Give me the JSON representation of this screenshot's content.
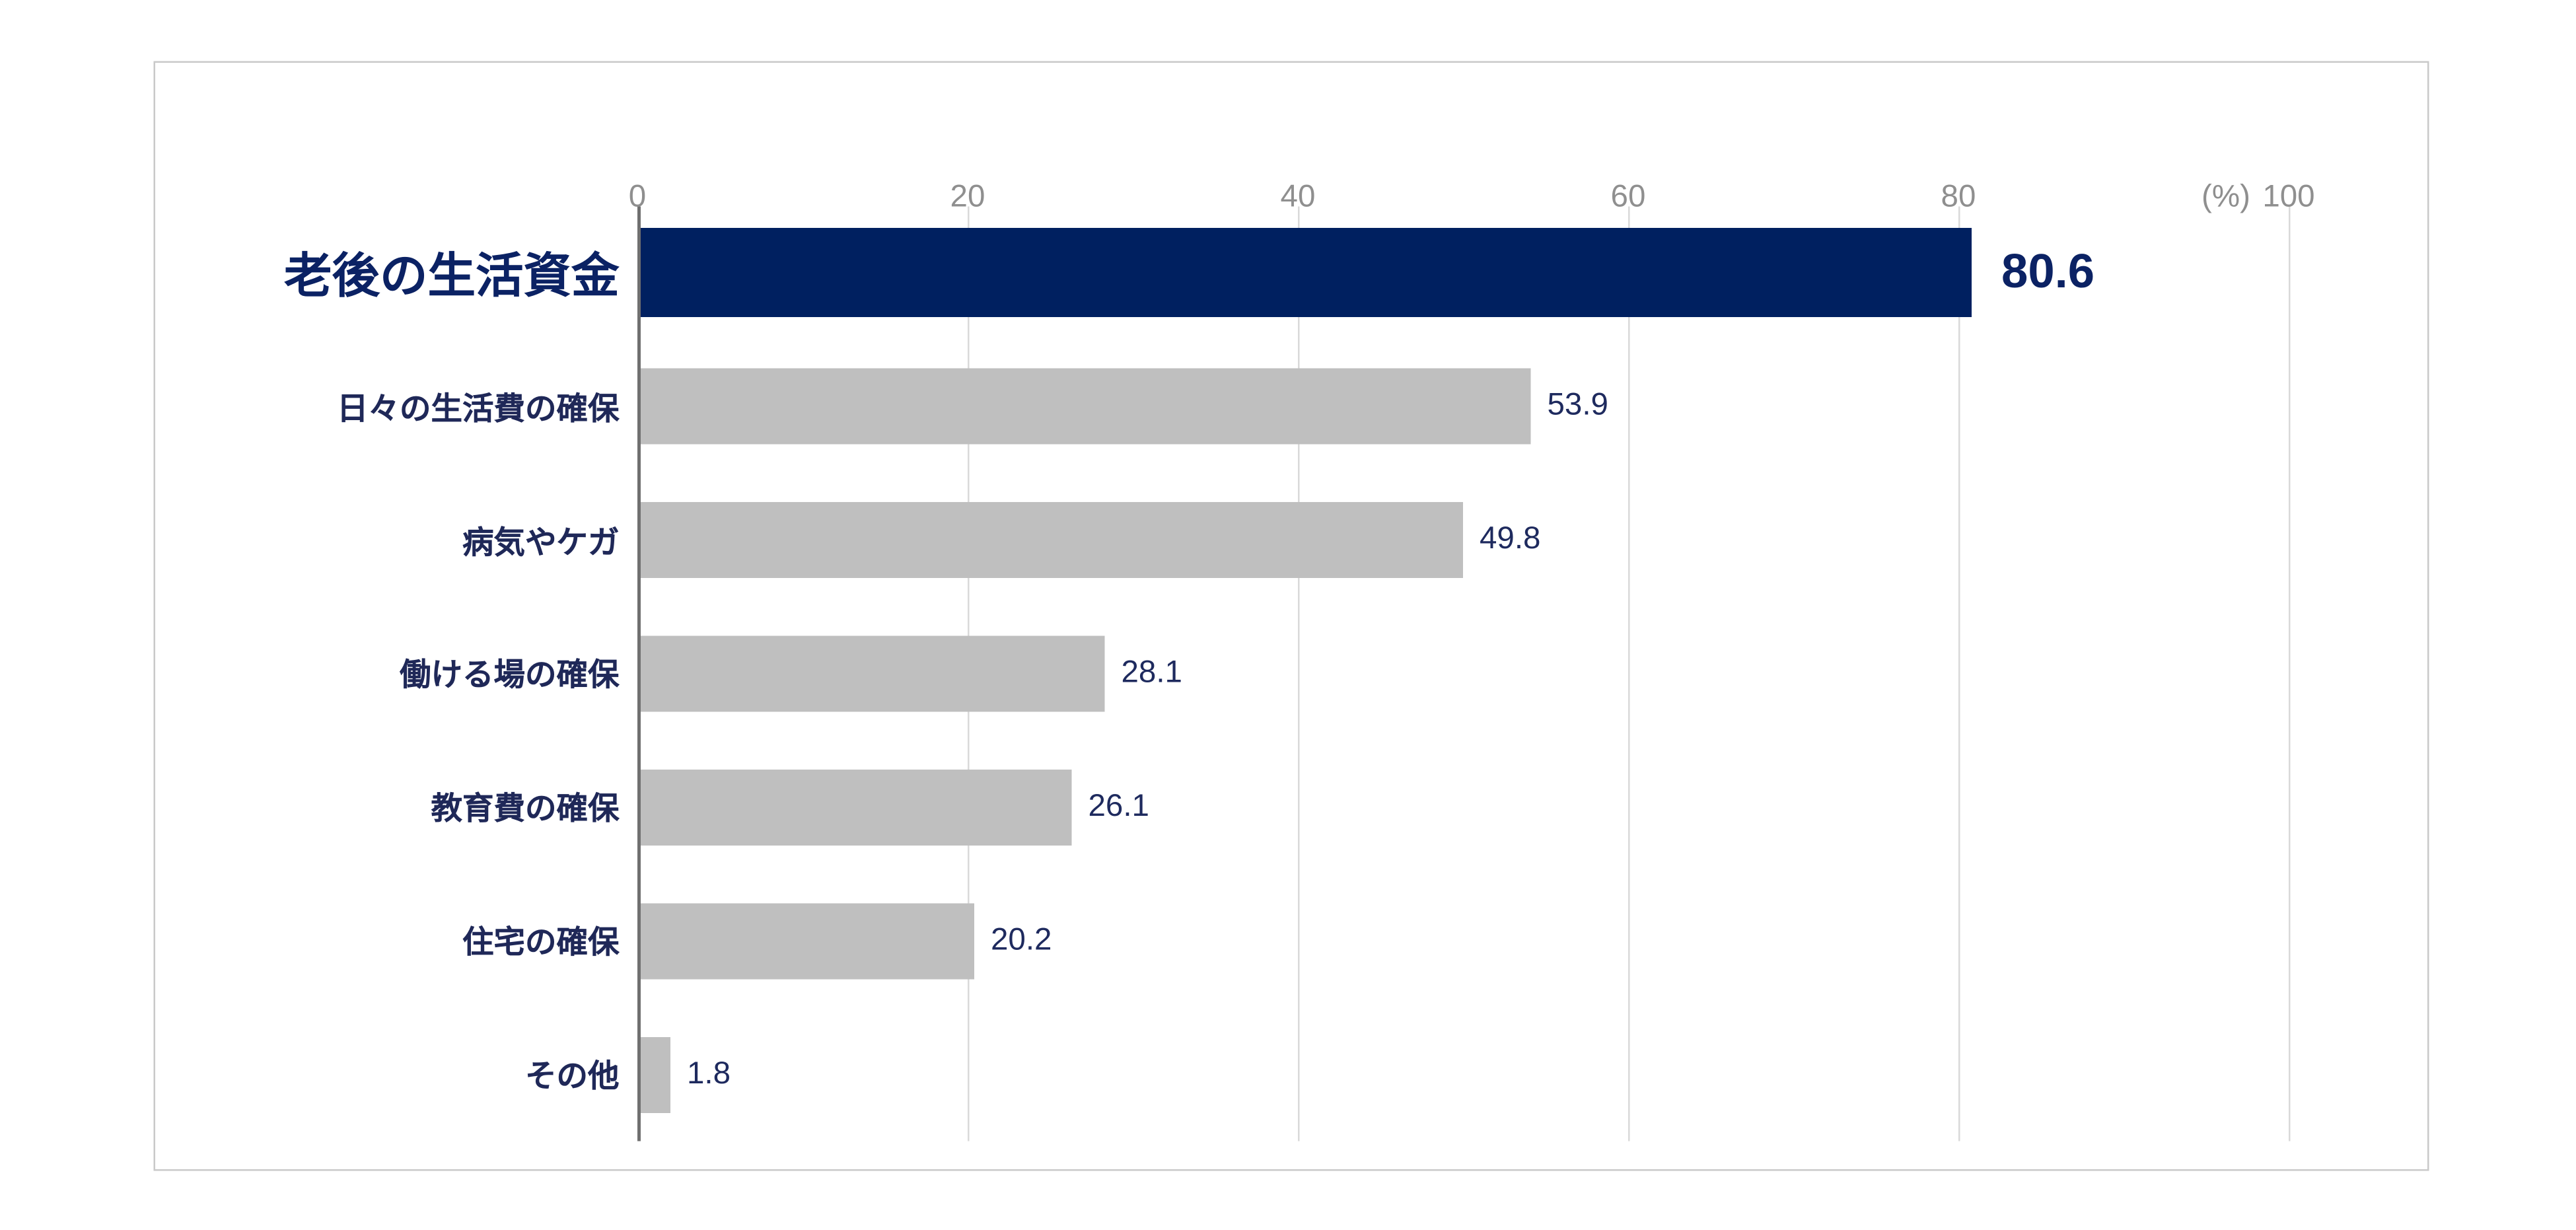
{
  "chart_data": {
    "type": "bar",
    "orientation": "horizontal",
    "title": "",
    "categories": [
      "老後の生活資金",
      "日々の生活費の確保",
      "病気やケガ",
      "働ける場の確保",
      "教育費の確保",
      "住宅の確保",
      "その他"
    ],
    "values": [
      80.6,
      53.9,
      49.8,
      28.1,
      26.1,
      20.2,
      1.8
    ],
    "highlight_index": 0,
    "x_tick_values": [
      0,
      20,
      40,
      60,
      80,
      100
    ],
    "x_tick_labels": [
      "0",
      "20",
      "40",
      "60",
      "80",
      "100"
    ],
    "unit_label": "(%)",
    "xlim": [
      0,
      100
    ],
    "grid": true,
    "legend": false,
    "colors": {
      "highlight_bar": "#002060",
      "default_bar": "#bfbfbf",
      "category_text": "#1f2858",
      "highlight_text": "#0b2264",
      "value_text": "#1e2a5e",
      "axis_tick_text": "#8f8f8f",
      "gridline": "#d9d9d9",
      "axis_line": "#707070",
      "frame_border": "#c9c9c9"
    }
  }
}
